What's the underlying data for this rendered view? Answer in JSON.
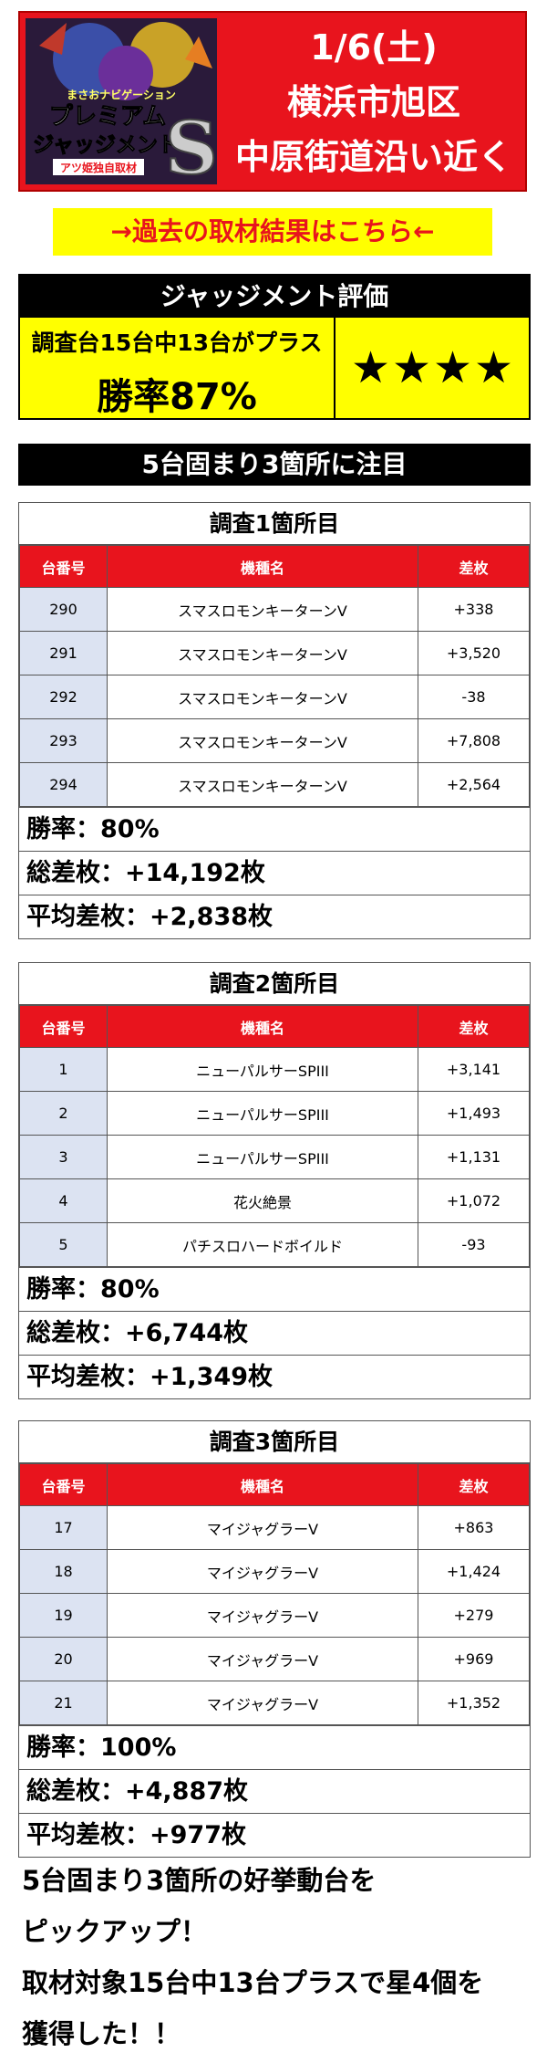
{
  "header": {
    "logo_text_top": "まさおナビゲーション",
    "logo_text_main1": "プレミアム",
    "logo_text_main2": "ジャッジメント",
    "logo_badge": "アツ姫独自取材",
    "logo_letter": "S",
    "date": "1/6(土)",
    "area": "横浜市旭区",
    "location": "中原街道沿い近く",
    "colors": {
      "banner": "#e8141d",
      "accent_yellow": "#ffff00"
    }
  },
  "past_results_link": "→過去の取材結果はこちら←",
  "judgement": {
    "heading": "ジャッジメント評価",
    "summary_line": "調査台15台中13台がプラス",
    "win_rate": "勝率87%",
    "stars": "★★★★"
  },
  "focus_banner": "5台固まり3箇所に注目",
  "columns": {
    "no": "台番号",
    "machine": "機種名",
    "diff": "差枚"
  },
  "surveys": [
    {
      "title": "調査1箇所目",
      "rows": [
        {
          "no": "290",
          "machine": "スマスロモンキーターンV",
          "diff": "+338"
        },
        {
          "no": "291",
          "machine": "スマスロモンキーターンV",
          "diff": "+3,520"
        },
        {
          "no": "292",
          "machine": "スマスロモンキーターンV",
          "diff": "-38"
        },
        {
          "no": "293",
          "machine": "スマスロモンキーターンV",
          "diff": "+7,808"
        },
        {
          "no": "294",
          "machine": "スマスロモンキーターンV",
          "diff": "+2,564"
        }
      ],
      "win_rate": "勝率：80%",
      "total": "総差枚：+14,192枚",
      "average": "平均差枚：+2,838枚"
    },
    {
      "title": "調査2箇所目",
      "rows": [
        {
          "no": "1",
          "machine": "ニューパルサーSPIII",
          "diff": "+3,141"
        },
        {
          "no": "2",
          "machine": "ニューパルサーSPIII",
          "diff": "+1,493"
        },
        {
          "no": "3",
          "machine": "ニューパルサーSPIII",
          "diff": "+1,131"
        },
        {
          "no": "4",
          "machine": "花火絶景",
          "diff": "+1,072"
        },
        {
          "no": "5",
          "machine": "パチスロハードボイルド",
          "diff": "-93"
        }
      ],
      "win_rate": "勝率：80%",
      "total": "総差枚：+6,744枚",
      "average": "平均差枚：+1,349枚"
    },
    {
      "title": "調査3箇所目",
      "rows": [
        {
          "no": "17",
          "machine": "マイジャグラーV",
          "diff": "+863"
        },
        {
          "no": "18",
          "machine": "マイジャグラーV",
          "diff": "+1,424"
        },
        {
          "no": "19",
          "machine": "マイジャグラーV",
          "diff": "+279"
        },
        {
          "no": "20",
          "machine": "マイジャグラーV",
          "diff": "+969"
        },
        {
          "no": "21",
          "machine": "マイジャグラーV",
          "diff": "+1,352"
        }
      ],
      "win_rate": "勝率：100%",
      "total": "総差枚：+4,887枚",
      "average": "平均差枚：+977枚"
    }
  ],
  "summary": {
    "line1": "5台固まり3箇所の好挙動台を",
    "line2": "ピックアップ！",
    "line3": "取材対象15台中13台プラスで星4個を",
    "line4": "獲得した！！"
  }
}
